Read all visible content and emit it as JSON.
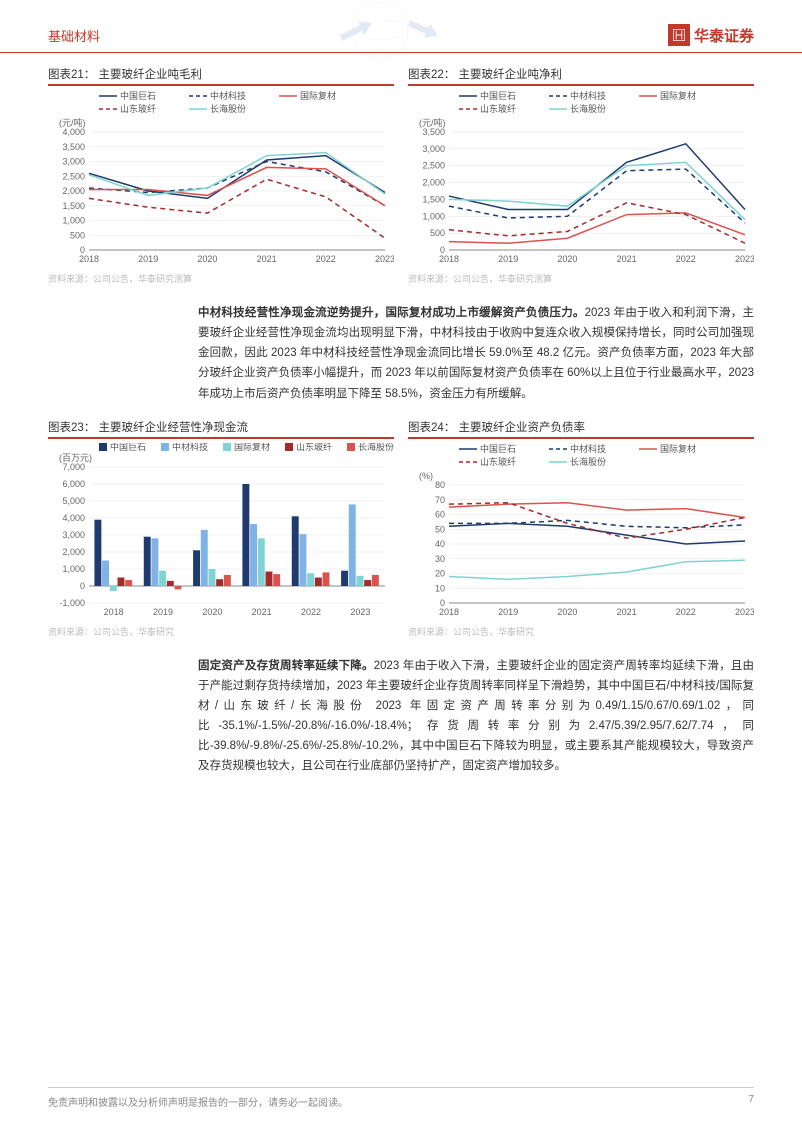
{
  "header": {
    "section": "基础材料",
    "brand": "华泰证券"
  },
  "footer": {
    "disclaimer": "免责声明和披露以及分析师声明是报告的一部分，请务必一起阅读。",
    "page": "7"
  },
  "paragraph1": {
    "lead": "中材科技经营性净现金流逆势提升，国际复材成功上市缓解资产负债压力。",
    "rest": "2023 年由于收入和利润下滑，主要玻纤企业经营性净现金流均出现明显下滑，中材科技由于收购中复连众收入规模保持增长，同时公司加强现金回款，因此 2023 年中材科技经营性净现金流同比增长 59.0%至 48.2 亿元。资产负债率方面，2023 年大部分玻纤企业资产负债率小幅提升，而 2023 年以前国际复材资产负债率在 60%以上且位于行业最高水平，2023 年成功上市后资产负债率明显下降至 58.5%，资金压力有所缓解。"
  },
  "paragraph2": {
    "lead": "固定资产及存货周转率延续下降。",
    "rest": "2023 年由于收入下滑，主要玻纤企业的固定资产周转率均延续下滑，且由于产能过剩存货持续增加，2023 年主要玻纤企业存货周转率同样呈下滑趋势，其中中国巨石/中材科技/国际复材/山东玻纤/长海股份 2023 年固定资产周转率分别为0.49/1.15/0.67/0.69/1.02，同比-35.1%/-1.5%/-20.8%/-16.0%/-18.4%；存货周转率分别为2.47/5.39/2.95/7.62/7.74，同比-39.8%/-9.8%/-25.6%/-25.8%/-10.2%，其中中国巨石下降较为明显，或主要系其产能规模较大，导致资产及存货规模也较大，且公司在行业底部仍坚持扩产，固定资产增加较多。"
  },
  "chart21": {
    "title": "图表21： 主要玻纤企业吨毛利",
    "ylabel": "(元/吨)",
    "source": "资料来源：公司公告，华泰研究测算",
    "years": [
      "2018",
      "2019",
      "2020",
      "2021",
      "2022",
      "2023"
    ],
    "ylim": [
      0,
      4000
    ],
    "ytick_step": 500,
    "series": [
      {
        "name": "中国巨石",
        "color": "#1f3a6e",
        "dash": false,
        "vals": [
          2600,
          2000,
          1750,
          3050,
          3200,
          1950
        ]
      },
      {
        "name": "中材科技",
        "color": "#1f3a6e",
        "dash": true,
        "vals": [
          2100,
          1950,
          2100,
          3000,
          2650,
          1500
        ]
      },
      {
        "name": "国际复材",
        "color": "#d9534f",
        "dash": false,
        "vals": [
          2050,
          2050,
          1850,
          2800,
          2750,
          1500
        ]
      },
      {
        "name": "山东玻纤",
        "color": "#a52a2a",
        "dash": true,
        "vals": [
          1750,
          1450,
          1250,
          2400,
          1800,
          400
        ]
      },
      {
        "name": "长海股份",
        "color": "#7fd3d3",
        "dash": false,
        "vals": [
          2550,
          1850,
          2100,
          3200,
          3300,
          1900
        ]
      }
    ],
    "grid_color": "#e6e6e6",
    "axis_color": "#666",
    "font_size": 9
  },
  "chart22": {
    "title": "图表22： 主要玻纤企业吨净利",
    "ylabel": "(元/吨)",
    "source": "资料来源：公司公告，华泰研究测算",
    "years": [
      "2018",
      "2019",
      "2020",
      "2021",
      "2022",
      "2023"
    ],
    "ylim": [
      0,
      3500
    ],
    "ytick_step": 500,
    "series": [
      {
        "name": "中国巨石",
        "color": "#1f3a6e",
        "dash": false,
        "vals": [
          1600,
          1200,
          1200,
          2600,
          3150,
          1200
        ]
      },
      {
        "name": "中材科技",
        "color": "#1f3a6e",
        "dash": true,
        "vals": [
          1300,
          950,
          1000,
          2350,
          2400,
          800
        ]
      },
      {
        "name": "国际复材",
        "color": "#d9534f",
        "dash": false,
        "vals": [
          250,
          200,
          350,
          1050,
          1100,
          450
        ]
      },
      {
        "name": "山东玻纤",
        "color": "#a52a2a",
        "dash": true,
        "vals": [
          600,
          420,
          550,
          1400,
          1050,
          200
        ]
      },
      {
        "name": "长海股份",
        "color": "#7fd3d3",
        "dash": false,
        "vals": [
          1500,
          1450,
          1300,
          2500,
          2600,
          900
        ]
      }
    ],
    "grid_color": "#e6e6e6",
    "axis_color": "#666",
    "font_size": 9
  },
  "chart23": {
    "title": "图表23： 主要玻纤企业经营性净现金流",
    "ylabel": "(百万元)",
    "source": "资料来源：公司公告，华泰研究",
    "years": [
      "2018",
      "2019",
      "2020",
      "2021",
      "2022",
      "2023"
    ],
    "ylim": [
      -1000,
      7000
    ],
    "ytick_step": 1000,
    "series": [
      {
        "name": "中国巨石",
        "color": "#1f3a6e",
        "vals": [
          3900,
          2900,
          2100,
          6000,
          4100,
          900
        ]
      },
      {
        "name": "中材科技",
        "color": "#7fb2e5",
        "vals": [
          1500,
          2800,
          3300,
          3650,
          3050,
          4800
        ]
      },
      {
        "name": "国际复材",
        "color": "#7fd3d3",
        "vals": [
          -300,
          900,
          1000,
          2800,
          750,
          600
        ]
      },
      {
        "name": "山东玻纤",
        "color": "#a52a2a",
        "vals": [
          500,
          300,
          400,
          850,
          500,
          350
        ]
      },
      {
        "name": "长海股份",
        "color": "#d9534f",
        "vals": [
          350,
          -200,
          650,
          700,
          800,
          650
        ]
      }
    ],
    "grid_color": "#e6e6e6",
    "axis_color": "#666",
    "font_size": 9,
    "bar_group_width": 0.78
  },
  "chart24": {
    "title": "图表24： 主要玻纤企业资产负债率",
    "ylabel": "(%)",
    "source": "资料来源：公司公告，华泰研究",
    "years": [
      "2018",
      "2019",
      "2020",
      "2021",
      "2022",
      "2023"
    ],
    "ylim": [
      0,
      80
    ],
    "ytick_step": 10,
    "series": [
      {
        "name": "中国巨石",
        "color": "#1f3a6e",
        "dash": false,
        "vals": [
          52,
          54,
          52,
          46,
          40,
          42
        ]
      },
      {
        "name": "中材科技",
        "color": "#1f3a6e",
        "dash": true,
        "vals": [
          54,
          54,
          56,
          52,
          51,
          53
        ]
      },
      {
        "name": "国际复材",
        "color": "#d9534f",
        "dash": false,
        "vals": [
          65,
          67,
          68,
          63,
          64,
          58
        ]
      },
      {
        "name": "山东玻纤",
        "color": "#a52a2a",
        "dash": true,
        "vals": [
          67,
          68,
          54,
          44,
          50,
          58
        ]
      },
      {
        "name": "长海股份",
        "color": "#7fd3d3",
        "dash": false,
        "vals": [
          18,
          16,
          18,
          21,
          28,
          29
        ]
      }
    ],
    "grid_color": "#e6e6e6",
    "axis_color": "#666",
    "font_size": 9
  }
}
